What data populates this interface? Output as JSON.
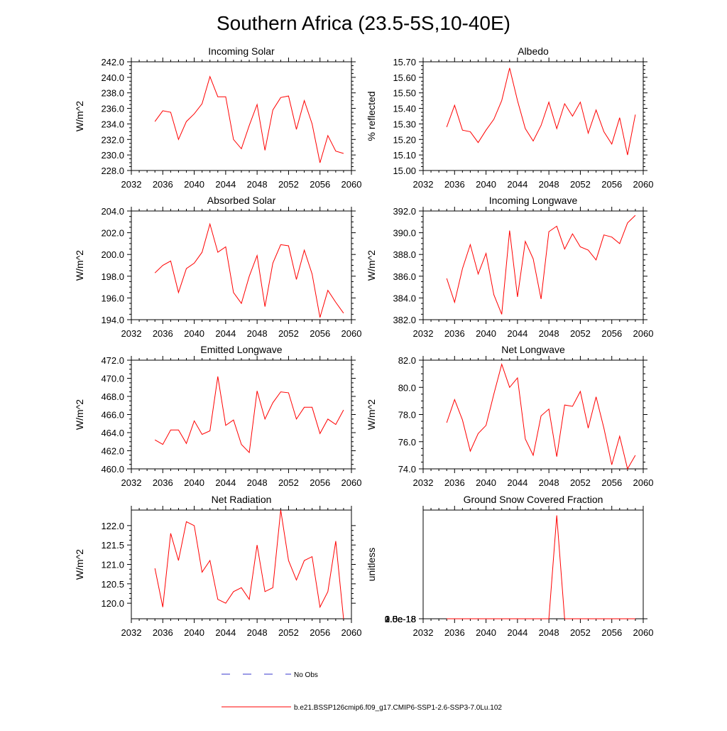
{
  "figure": {
    "title": "Southern Africa (23.5-5S,10-40E)"
  },
  "legend": {
    "obs_label": "No Obs",
    "model_label": "b.e21.BSSP126cmip6.f09_g17.CMIP6-SSP1-2.6-SSP3-7.0Lu.102",
    "obs_color": "#3a3acc",
    "model_color": "#ff0000"
  },
  "chart_data": [
    {
      "type": "line",
      "title": "Incoming Solar",
      "ylabel": "W/m^2",
      "xlim": [
        2032,
        2060
      ],
      "xticks": [
        "2032",
        "2036",
        "2040",
        "2044",
        "2048",
        "2052",
        "2056",
        "2060"
      ],
      "ylim": [
        228,
        242
      ],
      "yticks": [
        "228.0",
        "230.0",
        "232.0",
        "234.0",
        "236.0",
        "238.0",
        "240.0",
        "242.0"
      ],
      "x": [
        2035,
        2036,
        2037,
        2038,
        2039,
        2040,
        2041,
        2042,
        2043,
        2044,
        2045,
        2046,
        2047,
        2048,
        2049,
        2050,
        2051,
        2052,
        2053,
        2054,
        2055,
        2056,
        2057,
        2058,
        2059
      ],
      "values": [
        234.3,
        235.7,
        235.5,
        232.0,
        234.3,
        235.3,
        236.6,
        240.1,
        237.5,
        237.5,
        232.0,
        230.8,
        233.8,
        236.5,
        230.6,
        235.8,
        237.4,
        237.6,
        233.3,
        237.0,
        234.0,
        229.0,
        232.5,
        230.5,
        230.2
      ]
    },
    {
      "type": "line",
      "title": "Albedo",
      "ylabel": "% reflected",
      "xlim": [
        2032,
        2060
      ],
      "xticks": [
        "2032",
        "2036",
        "2040",
        "2044",
        "2048",
        "2052",
        "2056",
        "2060"
      ],
      "ylim": [
        15.0,
        15.7
      ],
      "yticks": [
        "15.00",
        "15.10",
        "15.20",
        "15.30",
        "15.40",
        "15.50",
        "15.60",
        "15.70"
      ],
      "x": [
        2035,
        2036,
        2037,
        2038,
        2039,
        2040,
        2041,
        2042,
        2043,
        2044,
        2045,
        2046,
        2047,
        2048,
        2049,
        2050,
        2051,
        2052,
        2053,
        2054,
        2055,
        2056,
        2057,
        2058,
        2059
      ],
      "values": [
        15.28,
        15.42,
        15.26,
        15.25,
        15.18,
        15.26,
        15.33,
        15.45,
        15.66,
        15.45,
        15.27,
        15.19,
        15.29,
        15.44,
        15.27,
        15.43,
        15.35,
        15.44,
        15.24,
        15.39,
        15.25,
        15.17,
        15.34,
        15.1,
        15.36
      ]
    },
    {
      "type": "line",
      "title": "Absorbed Solar",
      "ylabel": "W/m^2",
      "xlim": [
        2032,
        2060
      ],
      "xticks": [
        "2032",
        "2036",
        "2040",
        "2044",
        "2048",
        "2052",
        "2056",
        "2060"
      ],
      "ylim": [
        194,
        204
      ],
      "yticks": [
        "194.0",
        "196.0",
        "198.0",
        "200.0",
        "202.0",
        "204.0"
      ],
      "x": [
        2035,
        2036,
        2037,
        2038,
        2039,
        2040,
        2041,
        2042,
        2043,
        2044,
        2045,
        2046,
        2047,
        2048,
        2049,
        2050,
        2051,
        2052,
        2053,
        2054,
        2055,
        2056,
        2057,
        2058,
        2059
      ],
      "values": [
        198.3,
        199.0,
        199.4,
        196.5,
        198.7,
        199.2,
        200.2,
        202.8,
        200.2,
        200.7,
        196.5,
        195.5,
        198.0,
        199.9,
        195.2,
        199.2,
        200.9,
        200.8,
        197.7,
        200.4,
        198.2,
        194.2,
        196.7,
        195.6,
        194.6
      ]
    },
    {
      "type": "line",
      "title": "Incoming Longwave",
      "ylabel": "W/m^2",
      "xlim": [
        2032,
        2060
      ],
      "xticks": [
        "2032",
        "2036",
        "2040",
        "2044",
        "2048",
        "2052",
        "2056",
        "2060"
      ],
      "ylim": [
        382,
        392
      ],
      "yticks": [
        "382.0",
        "384.0",
        "386.0",
        "388.0",
        "390.0",
        "392.0"
      ],
      "x": [
        2035,
        2036,
        2037,
        2038,
        2039,
        2040,
        2041,
        2042,
        2043,
        2044,
        2045,
        2046,
        2047,
        2048,
        2049,
        2050,
        2051,
        2052,
        2053,
        2054,
        2055,
        2056,
        2057,
        2058,
        2059
      ],
      "values": [
        385.8,
        383.6,
        386.7,
        388.9,
        386.2,
        388.1,
        384.3,
        382.5,
        390.2,
        384.1,
        389.2,
        387.6,
        383.9,
        390.1,
        390.6,
        388.5,
        389.9,
        388.7,
        388.4,
        387.5,
        389.8,
        389.6,
        389.0,
        390.9,
        391.6
      ]
    },
    {
      "type": "line",
      "title": "Emitted Longwave",
      "ylabel": "W/m^2",
      "xlim": [
        2032,
        2060
      ],
      "xticks": [
        "2032",
        "2036",
        "2040",
        "2044",
        "2048",
        "2052",
        "2056",
        "2060"
      ],
      "ylim": [
        460,
        472
      ],
      "yticks": [
        "460.0",
        "462.0",
        "464.0",
        "466.0",
        "468.0",
        "470.0",
        "472.0"
      ],
      "x": [
        2035,
        2036,
        2037,
        2038,
        2039,
        2040,
        2041,
        2042,
        2043,
        2044,
        2045,
        2046,
        2047,
        2048,
        2049,
        2050,
        2051,
        2052,
        2053,
        2054,
        2055,
        2056,
        2057,
        2058,
        2059
      ],
      "values": [
        463.2,
        462.7,
        464.3,
        464.3,
        462.8,
        465.3,
        463.8,
        464.2,
        470.2,
        464.8,
        465.4,
        462.7,
        461.8,
        468.6,
        465.5,
        467.3,
        468.5,
        468.4,
        465.5,
        466.8,
        466.8,
        463.9,
        465.5,
        464.9,
        466.5
      ]
    },
    {
      "type": "line",
      "title": "Net Longwave",
      "ylabel": "W/m^2",
      "xlim": [
        2032,
        2060
      ],
      "xticks": [
        "2032",
        "2036",
        "2040",
        "2044",
        "2048",
        "2052",
        "2056",
        "2060"
      ],
      "ylim": [
        74,
        82
      ],
      "yticks": [
        "74.0",
        "76.0",
        "78.0",
        "80.0",
        "82.0"
      ],
      "x": [
        2035,
        2036,
        2037,
        2038,
        2039,
        2040,
        2041,
        2042,
        2043,
        2044,
        2045,
        2046,
        2047,
        2048,
        2049,
        2050,
        2051,
        2052,
        2053,
        2054,
        2055,
        2056,
        2057,
        2058,
        2059
      ],
      "values": [
        77.4,
        79.1,
        77.6,
        75.3,
        76.6,
        77.2,
        79.5,
        81.7,
        80.0,
        80.7,
        76.2,
        75.0,
        77.9,
        78.4,
        74.9,
        78.7,
        78.6,
        79.7,
        77.0,
        79.3,
        77.0,
        74.3,
        76.4,
        74.0,
        75.0
      ]
    },
    {
      "type": "line",
      "title": "Net Radiation",
      "ylabel": "W/m^2",
      "xlim": [
        2032,
        2060
      ],
      "xticks": [
        "2032",
        "2036",
        "2040",
        "2044",
        "2048",
        "2052",
        "2056",
        "2060"
      ],
      "ylim": [
        119.6,
        122.4
      ],
      "yticks": [
        "120.0",
        "120.5",
        "121.0",
        "121.5",
        "122.0"
      ],
      "x": [
        2035,
        2036,
        2037,
        2038,
        2039,
        2040,
        2041,
        2042,
        2043,
        2044,
        2045,
        2046,
        2047,
        2048,
        2049,
        2050,
        2051,
        2052,
        2053,
        2054,
        2055,
        2056,
        2057,
        2058,
        2059
      ],
      "values": [
        120.9,
        119.9,
        121.8,
        121.1,
        122.1,
        122.0,
        120.8,
        121.1,
        120.1,
        120.0,
        120.3,
        120.4,
        120.1,
        121.5,
        120.3,
        120.4,
        122.4,
        121.1,
        120.6,
        121.1,
        121.2,
        119.9,
        120.3,
        121.6,
        119.6
      ]
    },
    {
      "type": "line",
      "title": "Ground Snow Covered Fraction",
      "ylabel": "unitless",
      "xlim": [
        2032,
        2060
      ],
      "xticks": [
        "2032",
        "2036",
        "2040",
        "2044",
        "2048",
        "2052",
        "2056",
        "2060"
      ],
      "ylim": [
        0,
        3e-18
      ],
      "yticks": [
        "0.0e-18",
        "0.5e-18",
        "1.0e-18",
        "1.5e-18",
        "2.0e-18",
        "2.5e-18",
        "3.0e-18"
      ],
      "x": [
        2035,
        2036,
        2037,
        2038,
        2039,
        2040,
        2041,
        2042,
        2043,
        2044,
        2045,
        2046,
        2047,
        2048,
        2049,
        2050,
        2051,
        2052,
        2053,
        2054,
        2055,
        2056,
        2057,
        2058,
        2059
      ],
      "values": [
        0,
        0,
        0,
        0,
        0,
        0,
        0,
        0,
        0,
        0,
        0,
        0,
        0,
        0,
        2.85e-18,
        0,
        0,
        0,
        0,
        0,
        0,
        0,
        0,
        0,
        0
      ]
    }
  ]
}
